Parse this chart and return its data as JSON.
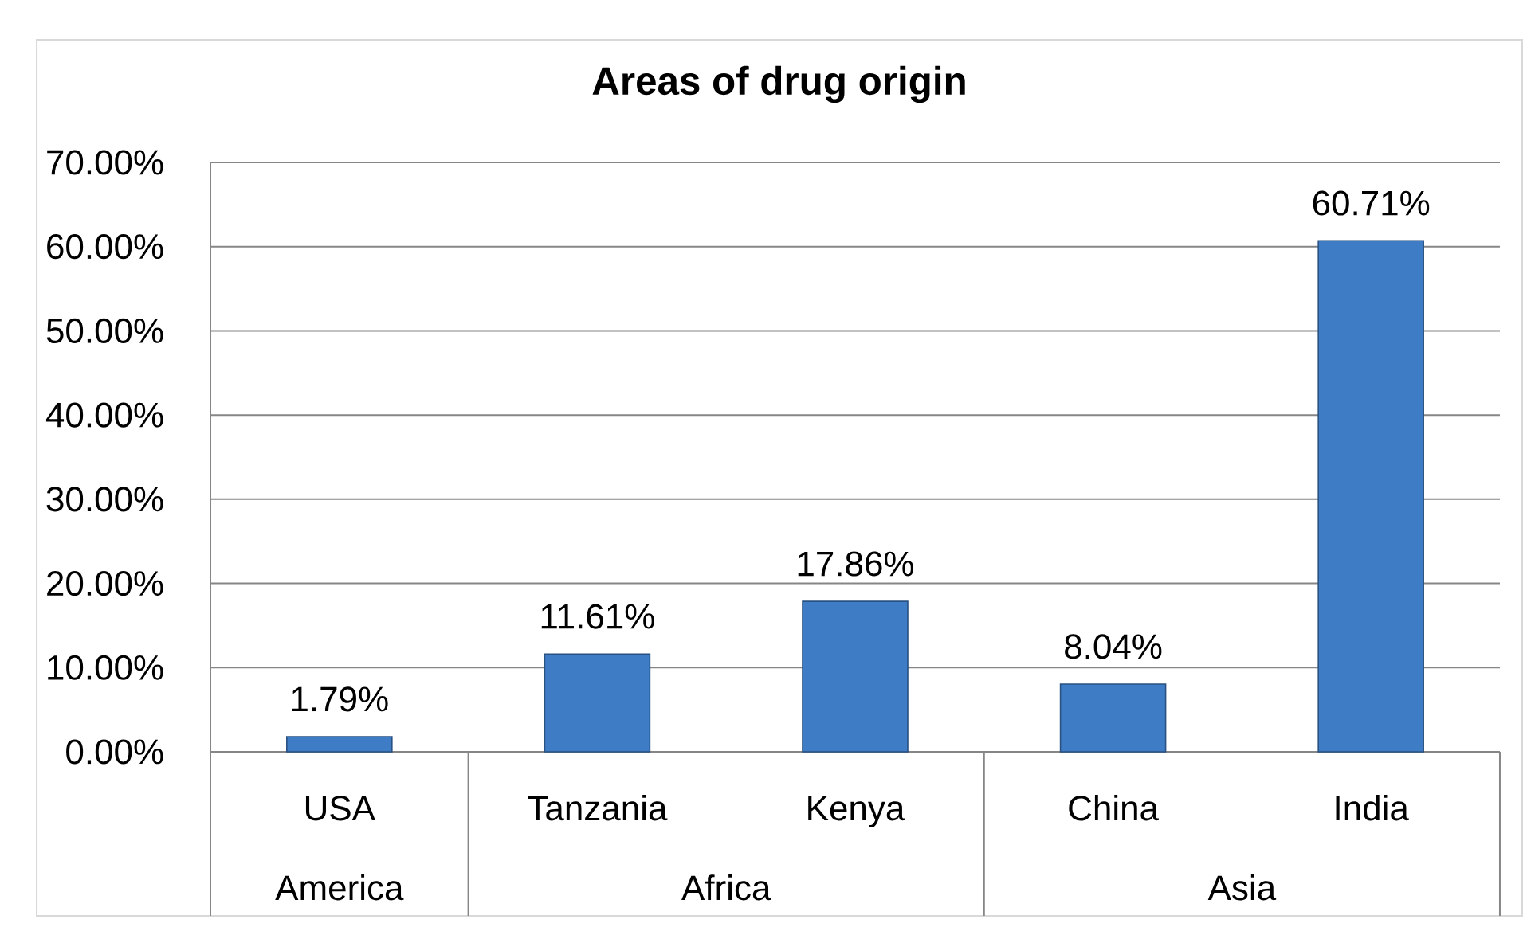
{
  "chart_data": {
    "type": "bar",
    "title": "Areas of drug origin",
    "categories": [
      "USA",
      "Tanzania",
      "Kenya",
      "China",
      "India"
    ],
    "values": [
      1.79,
      11.61,
      17.86,
      8.04,
      60.71
    ],
    "color": "#3f7cc6",
    "value_labels": [
      "1.79%",
      "11.61%",
      "17.86%",
      "8.04%",
      "60.71%"
    ],
    "ylim": [
      0,
      70
    ],
    "yticks": [
      {
        "value": 0,
        "label": "0.00%"
      },
      {
        "value": 10,
        "label": "10.00%"
      },
      {
        "value": 20,
        "label": "20.00%"
      },
      {
        "value": 30,
        "label": "30.00%"
      },
      {
        "value": 40,
        "label": "40.00%"
      },
      {
        "value": 50,
        "label": "50.00%"
      },
      {
        "value": 60,
        "label": "60.00%"
      },
      {
        "value": 70,
        "label": "70.00%"
      }
    ],
    "grid": "y",
    "annotations": [
      "America",
      "Africa",
      "Asia"
    ]
  }
}
